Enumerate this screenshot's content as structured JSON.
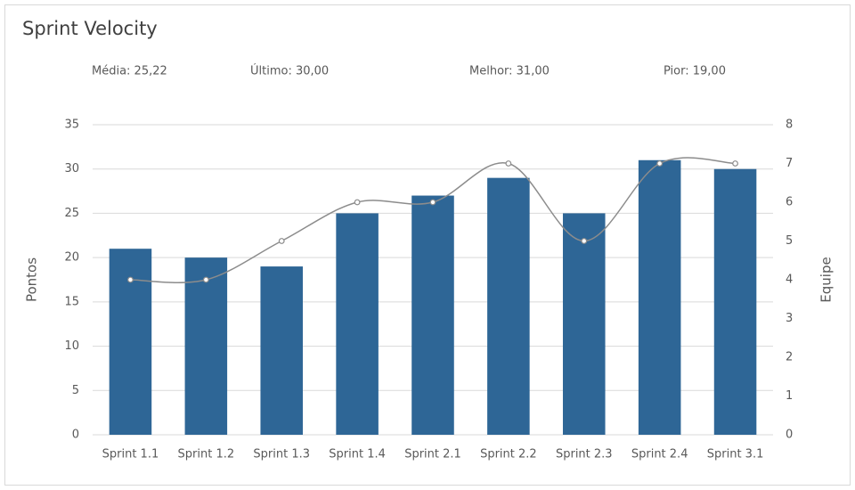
{
  "chart_data": {
    "type": "bar",
    "title": "Sprint Velocity",
    "annotations": [
      "Média: 25,22",
      "Último: 30,00",
      "Melhor: 31,00",
      "Pior: 19,00"
    ],
    "categories": [
      "Sprint 1.1",
      "Sprint 1.2",
      "Sprint 1.3",
      "Sprint 1.4",
      "Sprint 2.1",
      "Sprint 2.2",
      "Sprint 2.3",
      "Sprint 2.4",
      "Sprint 3.1"
    ],
    "series": [
      {
        "type": "bar",
        "color": "#2e6696",
        "values": [
          21,
          20,
          19,
          25,
          27,
          29,
          25,
          31,
          30
        ]
      },
      {
        "type": "line",
        "axis": "y2",
        "color": "#8c8c8c",
        "values": [
          4,
          4,
          5,
          6,
          6,
          7,
          5,
          7,
          7
        ]
      }
    ],
    "ylabel": "Pontos",
    "y2label": "Equipe",
    "ylim": [
      0,
      35
    ],
    "yticks": [
      0,
      5,
      10,
      15,
      20,
      25,
      30,
      35
    ],
    "y2lim": [
      0,
      8
    ],
    "y2ticks": [
      0,
      1,
      2,
      3,
      4,
      5,
      6,
      7,
      8
    ],
    "grid": true
  }
}
